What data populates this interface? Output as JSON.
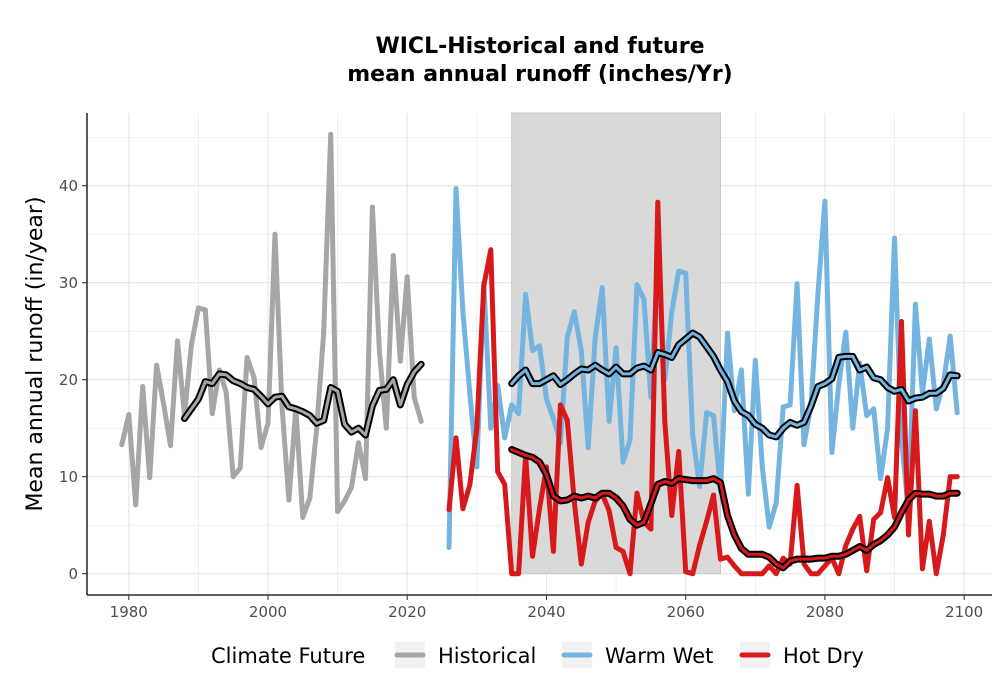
{
  "chart_data": {
    "type": "line",
    "title": [
      "WICL-Historical and future",
      "mean annual runoff (inches/Yr)"
    ],
    "xlabel": "",
    "ylabel": "Mean annual runoff (in/year)",
    "xlim": [
      1974,
      2104
    ],
    "ylim": [
      -2.2,
      47.5
    ],
    "x_ticks": [
      1980,
      2000,
      2020,
      2040,
      2060,
      2080,
      2100
    ],
    "y_ticks": [
      0,
      10,
      20,
      30,
      40
    ],
    "grid": true,
    "shaded_period": [
      2035,
      2065
    ],
    "legend": {
      "title": "Climate Future",
      "position": "bottom",
      "items": [
        "Historical",
        "Warm Wet",
        "Hot Dry"
      ]
    },
    "colors": {
      "Historical": "#a6a6a6",
      "Warm Wet": "#74b4e0",
      "Hot Dry": "#d7191c",
      "rolling_outline": "#000000",
      "shade": "#d9d9d9",
      "grid": "#e6e6e6"
    },
    "series": [
      {
        "name": "Historical",
        "x": [
          1979,
          1980,
          1981,
          1982,
          1983,
          1984,
          1985,
          1986,
          1987,
          1988,
          1989,
          1990,
          1991,
          1992,
          1993,
          1994,
          1995,
          1996,
          1997,
          1998,
          1999,
          2000,
          2001,
          2002,
          2003,
          2004,
          2005,
          2006,
          2007,
          2008,
          2009,
          2010,
          2011,
          2012,
          2013,
          2014,
          2015,
          2016,
          2017,
          2018,
          2019,
          2020,
          2021,
          2022
        ],
        "values": [
          13.3,
          16.4,
          7.1,
          19.3,
          9.9,
          21.5,
          17.5,
          13.2,
          24.0,
          16.3,
          23.6,
          27.4,
          27.2,
          16.5,
          21.0,
          18.7,
          10.0,
          10.9,
          22.3,
          20.2,
          13.0,
          15.5,
          35.0,
          17.4,
          7.6,
          17.0,
          5.8,
          7.8,
          15.0,
          24.9,
          45.3,
          6.4,
          7.5,
          8.9,
          13.5,
          9.8,
          37.8,
          22.9,
          15.0,
          32.8,
          21.9,
          30.6,
          18.2,
          15.7
        ]
      },
      {
        "name": "Historical rolling mean",
        "x": [
          1988,
          1989,
          1990,
          1991,
          1992,
          1993,
          1994,
          1995,
          1996,
          1997,
          1998,
          1999,
          2000,
          2001,
          2002,
          2003,
          2004,
          2005,
          2006,
          2007,
          2008,
          2009,
          2010,
          2011,
          2012,
          2013,
          2014,
          2015,
          2016,
          2017,
          2018,
          2019,
          2020,
          2021,
          2022
        ],
        "values": [
          16.0,
          17.0,
          18.0,
          19.8,
          19.6,
          20.6,
          20.5,
          19.9,
          19.6,
          19.2,
          19.0,
          18.3,
          17.5,
          18.2,
          18.3,
          17.2,
          17.0,
          16.7,
          16.3,
          15.5,
          15.8,
          19.2,
          18.8,
          15.4,
          14.6,
          15.0,
          14.3,
          17.3,
          18.9,
          19.0,
          20.0,
          17.4,
          19.5,
          20.8,
          21.6
        ]
      },
      {
        "name": "Warm Wet",
        "x": [
          2026,
          2027,
          2028,
          2029,
          2030,
          2031,
          2032,
          2033,
          2034,
          2035,
          2036,
          2037,
          2038,
          2039,
          2040,
          2041,
          2042,
          2043,
          2044,
          2045,
          2046,
          2047,
          2048,
          2049,
          2050,
          2051,
          2052,
          2053,
          2054,
          2055,
          2056,
          2057,
          2058,
          2059,
          2060,
          2061,
          2062,
          2063,
          2064,
          2065,
          2066,
          2067,
          2068,
          2069,
          2070,
          2071,
          2072,
          2073,
          2074,
          2075,
          2076,
          2077,
          2078,
          2079,
          2080,
          2081,
          2082,
          2083,
          2084,
          2085,
          2086,
          2087,
          2088,
          2089,
          2090,
          2091,
          2092,
          2093,
          2094,
          2095,
          2096,
          2097,
          2098,
          2099
        ],
        "values": [
          2.7,
          39.7,
          27.0,
          18.5,
          11.0,
          30.0,
          15.0,
          19.4,
          14.0,
          17.4,
          16.5,
          28.8,
          23.0,
          23.5,
          18.0,
          16.0,
          13.5,
          24.4,
          27.0,
          23.0,
          13.0,
          24.3,
          29.5,
          15.7,
          23.3,
          11.5,
          13.8,
          29.8,
          28.3,
          18.2,
          32.5,
          20.0,
          27.0,
          31.2,
          31.0,
          14.3,
          9.0,
          16.6,
          16.3,
          8.5,
          24.8,
          16.8,
          21.0,
          8.2,
          22.0,
          11.0,
          4.8,
          7.3,
          17.2,
          17.4,
          29.9,
          13.3,
          17.4,
          29.0,
          38.4,
          12.5,
          19.5,
          24.9,
          15.0,
          21.7,
          16.3,
          17.0,
          9.8,
          15.0,
          34.6,
          14.0,
          6.3,
          27.8,
          18.6,
          24.2,
          17.0,
          19.6,
          24.5,
          16.6
        ]
      },
      {
        "name": "Warm Wet rolling mean",
        "x": [
          2035,
          2036,
          2037,
          2038,
          2039,
          2040,
          2041,
          2042,
          2043,
          2044,
          2045,
          2046,
          2047,
          2048,
          2049,
          2050,
          2051,
          2052,
          2053,
          2054,
          2055,
          2056,
          2057,
          2058,
          2059,
          2060,
          2061,
          2062,
          2063,
          2064,
          2065,
          2066,
          2067,
          2068,
          2069,
          2070,
          2071,
          2072,
          2073,
          2074,
          2075,
          2076,
          2077,
          2078,
          2079,
          2080,
          2081,
          2082,
          2083,
          2084,
          2085,
          2086,
          2087,
          2088,
          2089,
          2090,
          2091,
          2092,
          2093,
          2094,
          2095,
          2096,
          2097,
          2098,
          2099
        ],
        "values": [
          19.6,
          20.4,
          21.0,
          19.6,
          19.6,
          20.0,
          20.4,
          19.5,
          20.0,
          20.6,
          21.1,
          21.0,
          21.5,
          21.0,
          20.6,
          21.3,
          20.6,
          20.6,
          21.2,
          21.4,
          21.0,
          22.8,
          22.6,
          22.3,
          23.6,
          24.2,
          24.8,
          24.4,
          23.4,
          22.4,
          21.0,
          19.8,
          17.8,
          16.7,
          16.3,
          15.4,
          15.0,
          14.3,
          14.1,
          15.0,
          15.6,
          15.3,
          15.6,
          17.3,
          19.3,
          19.6,
          20.1,
          22.3,
          22.4,
          22.4,
          21.0,
          21.3,
          20.2,
          20.0,
          19.2,
          18.8,
          19.0,
          17.8,
          18.1,
          18.2,
          18.6,
          18.6,
          19.1,
          20.5,
          20.4
        ]
      },
      {
        "name": "Hot Dry",
        "x": [
          2026,
          2027,
          2028,
          2029,
          2030,
          2031,
          2032,
          2033,
          2034,
          2035,
          2036,
          2037,
          2038,
          2039,
          2040,
          2041,
          2042,
          2043,
          2044,
          2045,
          2046,
          2047,
          2048,
          2049,
          2050,
          2051,
          2052,
          2053,
          2054,
          2055,
          2056,
          2057,
          2058,
          2059,
          2060,
          2061,
          2062,
          2063,
          2064,
          2065,
          2066,
          2067,
          2068,
          2069,
          2070,
          2071,
          2072,
          2073,
          2074,
          2075,
          2076,
          2077,
          2078,
          2079,
          2080,
          2081,
          2082,
          2083,
          2084,
          2085,
          2086,
          2087,
          2088,
          2089,
          2090,
          2091,
          2092,
          2093,
          2094,
          2095,
          2096,
          2097,
          2098,
          2099
        ],
        "values": [
          6.6,
          14.0,
          6.7,
          9.2,
          15.0,
          29.7,
          33.4,
          10.5,
          9.2,
          0.0,
          0.0,
          12.2,
          1.8,
          6.7,
          11.0,
          2.3,
          17.4,
          15.8,
          7.4,
          1.0,
          5.3,
          7.5,
          8.2,
          6.5,
          2.7,
          2.3,
          0.0,
          8.3,
          5.3,
          4.6,
          38.3,
          15.7,
          6.0,
          12.6,
          0.2,
          0.0,
          2.9,
          5.4,
          8.1,
          1.5,
          1.7,
          0.8,
          0.0,
          0.0,
          0.0,
          0.0,
          0.8,
          0.0,
          1.6,
          1.0,
          9.1,
          1.0,
          0.0,
          0.0,
          0.8,
          1.6,
          0.0,
          2.9,
          4.6,
          5.9,
          0.3,
          5.6,
          6.3,
          9.9,
          5.8,
          26.0,
          4.0,
          16.8,
          0.5,
          5.4,
          0.0,
          4.0,
          10.0,
          10.0
        ]
      },
      {
        "name": "Hot Dry rolling mean",
        "x": [
          2035,
          2036,
          2037,
          2038,
          2039,
          2040,
          2041,
          2042,
          2043,
          2044,
          2045,
          2046,
          2047,
          2048,
          2049,
          2050,
          2051,
          2052,
          2053,
          2054,
          2055,
          2056,
          2057,
          2058,
          2059,
          2060,
          2061,
          2062,
          2063,
          2064,
          2065,
          2066,
          2067,
          2068,
          2069,
          2070,
          2071,
          2072,
          2073,
          2074,
          2075,
          2076,
          2077,
          2078,
          2079,
          2080,
          2081,
          2082,
          2083,
          2084,
          2085,
          2086,
          2087,
          2088,
          2089,
          2090,
          2091,
          2092,
          2093,
          2094,
          2095,
          2096,
          2097,
          2098,
          2099
        ],
        "values": [
          12.8,
          12.5,
          12.2,
          12.0,
          11.5,
          10.2,
          8.0,
          7.5,
          7.6,
          8.0,
          7.8,
          8.0,
          7.8,
          8.3,
          8.3,
          7.8,
          7.0,
          5.6,
          5.0,
          5.3,
          7.2,
          9.2,
          9.5,
          9.3,
          9.8,
          9.7,
          9.6,
          9.6,
          9.6,
          9.8,
          9.4,
          6.0,
          4.0,
          2.6,
          2.0,
          2.0,
          2.0,
          1.7,
          1.0,
          0.6,
          1.3,
          1.5,
          1.5,
          1.5,
          1.6,
          1.6,
          1.8,
          1.8,
          2.0,
          2.4,
          2.8,
          2.4,
          3.0,
          3.4,
          4.0,
          4.8,
          6.3,
          7.6,
          8.3,
          8.2,
          8.2,
          8.0,
          8.0,
          8.3,
          8.3
        ]
      }
    ]
  }
}
